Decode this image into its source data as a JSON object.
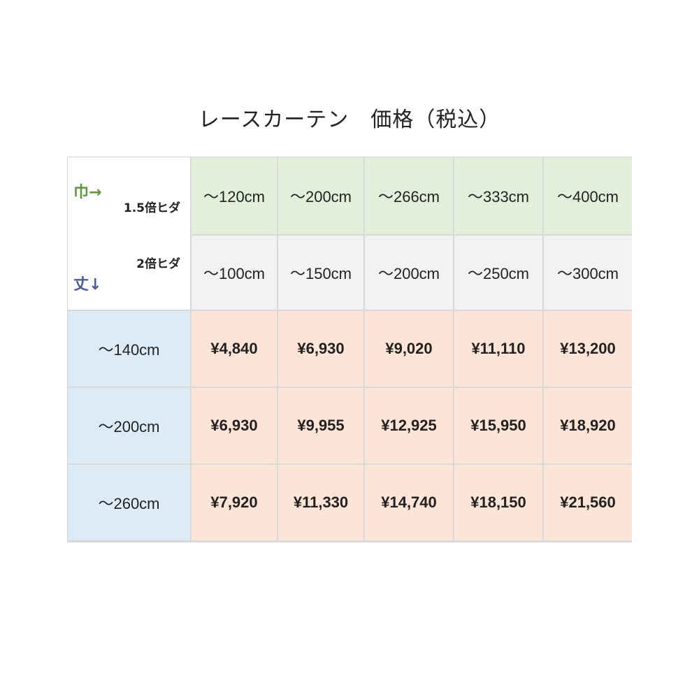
{
  "title": "レースカーテン　価格（税込）",
  "corner": {
    "width_label": "巾→",
    "height_label": "丈↓",
    "pleat_15": "1.5倍ヒダ",
    "pleat_2": "2倍ヒダ"
  },
  "widths_15": [
    "～120cm",
    "～200cm",
    "～266cm",
    "～333cm",
    "～400cm"
  ],
  "widths_2": [
    "～100cm",
    "～150cm",
    "～200cm",
    "～250cm",
    "～300cm"
  ],
  "rows": [
    {
      "height": "～140cm",
      "prices": [
        "¥4,840",
        "¥6,930",
        "¥9,020",
        "¥11,110",
        "¥13,200"
      ]
    },
    {
      "height": "～200cm",
      "prices": [
        "¥6,930",
        "¥9,955",
        "¥12,925",
        "¥15,950",
        "¥18,920"
      ]
    },
    {
      "height": "～260cm",
      "prices": [
        "¥7,920",
        "¥11,330",
        "¥14,740",
        "¥18,150",
        "¥21,560"
      ]
    }
  ],
  "colors": {
    "width_15_bg": "#e2efda",
    "width_2_bg": "#f2f2f2",
    "height_bg": "#ddebf7",
    "price_bg": "#fce4d6",
    "width_label": "#5b9a3c",
    "height_label": "#4a5c9e"
  }
}
